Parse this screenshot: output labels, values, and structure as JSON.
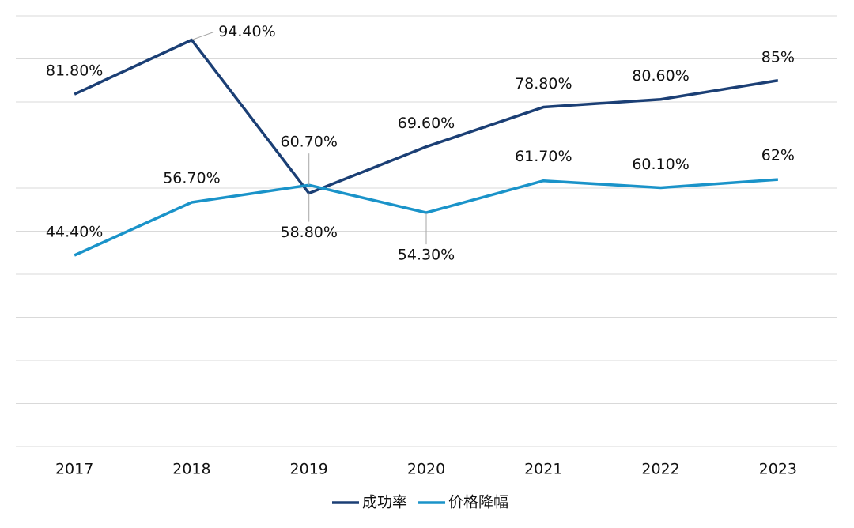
{
  "chart_data": {
    "type": "line",
    "categories": [
      "2017",
      "2018",
      "2019",
      "2020",
      "2021",
      "2022",
      "2023"
    ],
    "series": [
      {
        "name": "成功率",
        "color": "#1b3f75",
        "values": [
          81.8,
          94.4,
          58.8,
          69.6,
          78.8,
          80.6,
          85
        ],
        "value_labels": [
          "81.80%",
          "94.40%",
          "58.80%",
          "69.60%",
          "78.80%",
          "80.60%",
          "85%"
        ]
      },
      {
        "name": "价格降幅",
        "color": "#1a93c9",
        "values": [
          44.4,
          56.7,
          60.7,
          54.3,
          61.7,
          60.1,
          62
        ],
        "value_labels": [
          "44.40%",
          "56.70%",
          "60.70%",
          "54.30%",
          "61.70%",
          "60.10%",
          "62%"
        ]
      }
    ],
    "ylim": [
      0,
      100
    ],
    "yticks": [
      0,
      10,
      20,
      30,
      40,
      50,
      60,
      70,
      80,
      90,
      100
    ],
    "grid": true,
    "show_ytick_labels": false,
    "legend": "bottom"
  }
}
